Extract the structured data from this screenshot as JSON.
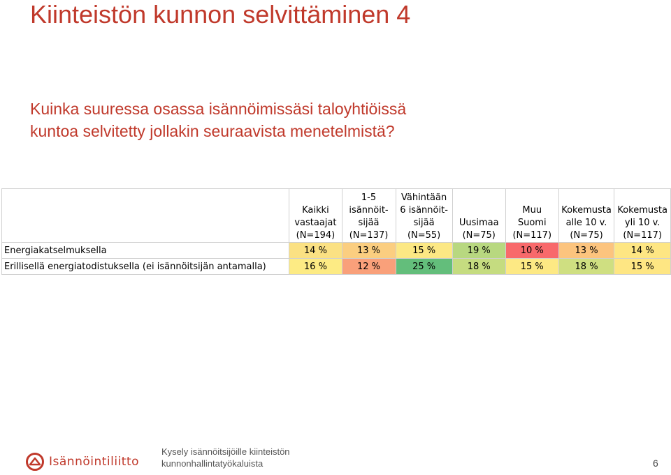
{
  "slide": {
    "title": "Kiinteistön kunnon selvittäminen 4",
    "question_line1": "Kuinka suuressa osassa isännöimissäsi taloyhtiöissä",
    "question_line2": "kuntoa selvitetty jollakin seuraavista menetelmistä?"
  },
  "table": {
    "columns": [
      {
        "line1": "",
        "line2": "Kaikki",
        "line3": "vastaajat",
        "line4": "(N=194)"
      },
      {
        "line1": "1-5",
        "line2": "isännöit-",
        "line3": "sijää",
        "line4": "(N=137)"
      },
      {
        "line1": "Vähintään",
        "line2": "6 isännöit-",
        "line3": "sijää",
        "line4": "(N=55)"
      },
      {
        "line1": "",
        "line2": "",
        "line3": "Uusimaa",
        "line4": "(N=75)"
      },
      {
        "line1": "",
        "line2": "Muu",
        "line3": "Suomi",
        "line4": "(N=117)"
      },
      {
        "line1": "",
        "line2": "Kokemusta",
        "line3": "alle 10 v.",
        "line4": "(N=75)"
      },
      {
        "line1": "",
        "line2": "Kokemusta",
        "line3": "yli 10 v.",
        "line4": "(N=117)"
      }
    ],
    "rows": [
      {
        "label": "Energiakatselmuksella",
        "cells": [
          {
            "value": "14 %",
            "color": "#fbe183"
          },
          {
            "value": "13 %",
            "color": "#fbce80"
          },
          {
            "value": "15 %",
            "color": "#fce884"
          },
          {
            "value": "19 %",
            "color": "#b8d880"
          },
          {
            "value": "10 %",
            "color": "#f8696b"
          },
          {
            "value": "13 %",
            "color": "#fcc47e"
          },
          {
            "value": "14 %",
            "color": "#fee683"
          }
        ]
      },
      {
        "label": "Erillisellä energiatodistuksella (ei isännöitsijän antamalla)",
        "cells": [
          {
            "value": "16 %",
            "color": "#fdeb84"
          },
          {
            "value": "12 %",
            "color": "#f9a07a"
          },
          {
            "value": "25 %",
            "color": "#63be7b"
          },
          {
            "value": "18 %",
            "color": "#c5dc80"
          },
          {
            "value": "15 %",
            "color": "#fde984"
          },
          {
            "value": "18 %",
            "color": "#cfdf81"
          },
          {
            "value": "15 %",
            "color": "#fee683"
          }
        ]
      }
    ]
  },
  "footer": {
    "logo_text": "Isännöintiliitto",
    "line1": "Kysely isännöitsijöille kiinteistön",
    "line2": "kunnonhallintatyökaluista",
    "page_number": "6"
  },
  "colors": {
    "accent": "#c0392b"
  }
}
